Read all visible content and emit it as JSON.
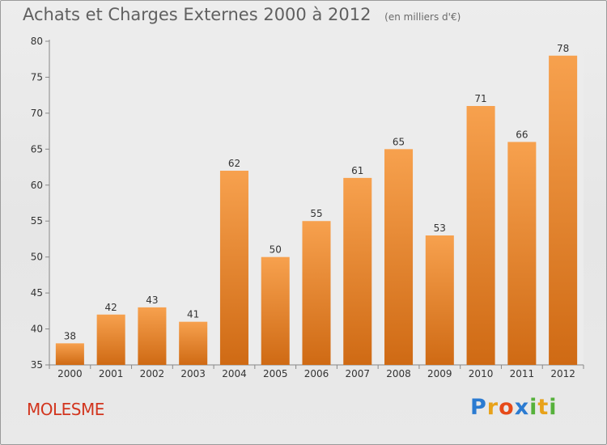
{
  "header": {
    "title": "Achats et Charges Externes 2000 à 2012",
    "unit": "(en milliers d'€)"
  },
  "footer": {
    "commune": "MOLESME",
    "logo_letters": [
      "P",
      "r",
      "o",
      "x",
      "i",
      "t",
      "i"
    ],
    "logo_colors": [
      "#2b7bd1",
      "#e8a21a",
      "#e64a19",
      "#2b7bd1",
      "#56b13b",
      "#e8a21a",
      "#56b13b"
    ]
  },
  "chart_data": {
    "type": "bar",
    "title": "Achats et Charges Externes 2000 à 2012",
    "subtitle": "(en milliers d'€)",
    "categories": [
      "2000",
      "2001",
      "2002",
      "2003",
      "2004",
      "2005",
      "2006",
      "2007",
      "2008",
      "2009",
      "2010",
      "2011",
      "2012"
    ],
    "values": [
      38,
      42,
      43,
      41,
      62,
      50,
      55,
      61,
      65,
      53,
      71,
      66,
      78
    ],
    "ylim": [
      35,
      80
    ],
    "yticks": [
      35,
      40,
      45,
      50,
      55,
      60,
      65,
      70,
      75,
      80
    ],
    "grid": false,
    "bar_color_top": "#f7a14e",
    "bar_color_bottom": "#cf6a14",
    "data_labels": true
  }
}
